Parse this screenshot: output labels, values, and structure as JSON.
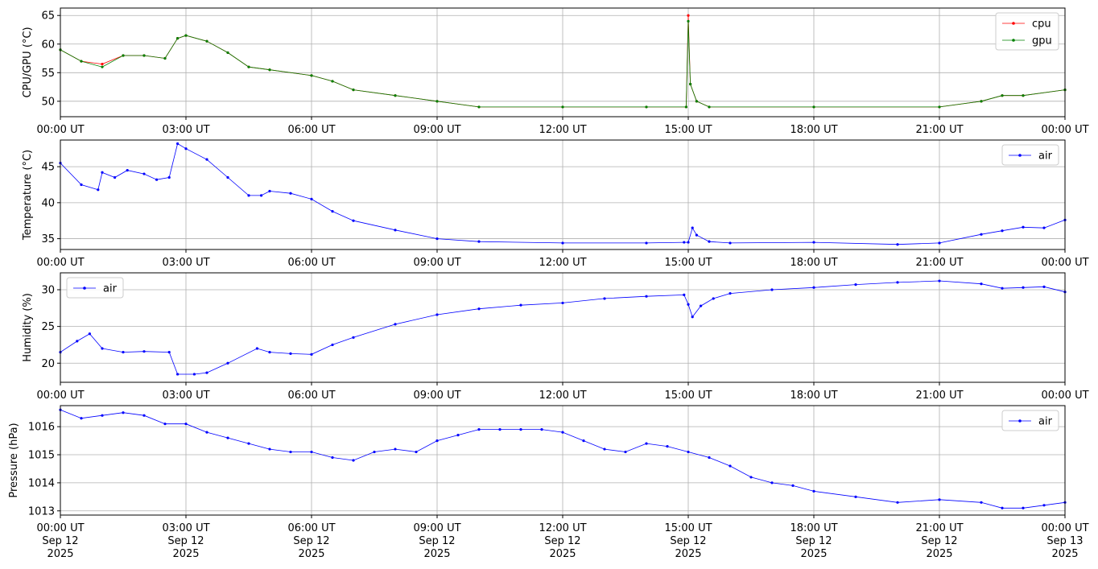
{
  "x_ticks": [
    "00:00 UT",
    "03:00 UT",
    "06:00 UT",
    "09:00 UT",
    "12:00 UT",
    "15:00 UT",
    "18:00 UT",
    "21:00 UT",
    "00:00 UT"
  ],
  "x_date_ticks": [
    [
      "Sep 12",
      "2025"
    ],
    [
      "Sep 12",
      "2025"
    ],
    [
      "Sep 12",
      "2025"
    ],
    [
      "Sep 12",
      "2025"
    ],
    [
      "Sep 12",
      "2025"
    ],
    [
      "Sep 12",
      "2025"
    ],
    [
      "Sep 12",
      "2025"
    ],
    [
      "Sep 12",
      "2025"
    ],
    [
      "Sep 13",
      "2025"
    ]
  ],
  "colors": {
    "cpu": "#ff0000",
    "gpu": "#008000",
    "air": "#0000ff",
    "grid": "#b0b0b0"
  },
  "chart_data": [
    {
      "type": "line",
      "ylabel": "CPU/GPU (°C)",
      "xlim": [
        "2025-09-12 00:00 UT",
        "2025-09-13 00:00 UT"
      ],
      "ylim": [
        47.3,
        66.3
      ],
      "yticks": [
        50,
        55,
        60,
        65
      ],
      "grid": true,
      "legend": "top-right",
      "x_hours": [
        0,
        0.5,
        1.0,
        1.5,
        2.0,
        2.5,
        2.8,
        3.0,
        3.5,
        4.0,
        4.5,
        5.0,
        6.0,
        6.5,
        7.0,
        8.0,
        9.0,
        10.0,
        12.0,
        14.0,
        14.95,
        15.0,
        15.05,
        15.2,
        15.5,
        18.0,
        21.0,
        22.0,
        22.5,
        23.0,
        24.0
      ],
      "series": [
        {
          "name": "cpu",
          "values": [
            59,
            57,
            56.5,
            58,
            58,
            57.5,
            61,
            61.5,
            60.5,
            58.5,
            56,
            55.5,
            54.5,
            53.5,
            52,
            51,
            50,
            49,
            49,
            49,
            49,
            65,
            53,
            50,
            49,
            49,
            49,
            50,
            51,
            51,
            52
          ]
        },
        {
          "name": "gpu",
          "values": [
            59,
            57,
            56,
            58,
            58,
            57.5,
            61,
            61.5,
            60.5,
            58.5,
            56,
            55.5,
            54.5,
            53.5,
            52,
            51,
            50,
            49,
            49,
            49,
            49,
            64,
            53,
            50,
            49,
            49,
            49,
            50,
            51,
            51,
            52
          ]
        }
      ]
    },
    {
      "type": "line",
      "ylabel": "Temperature (°C)",
      "xlim": [
        "2025-09-12 00:00 UT",
        "2025-09-13 00:00 UT"
      ],
      "ylim": [
        33.5,
        48.7
      ],
      "yticks": [
        35,
        40,
        45
      ],
      "grid": true,
      "legend": "top-right",
      "x_hours": [
        0,
        0.5,
        0.9,
        1.0,
        1.3,
        1.6,
        2.0,
        2.3,
        2.6,
        2.8,
        3.0,
        3.5,
        4.0,
        4.5,
        4.8,
        5.0,
        5.5,
        6.0,
        6.5,
        7.0,
        8.0,
        9.0,
        10.0,
        12.0,
        14.0,
        14.9,
        15.0,
        15.1,
        15.2,
        15.5,
        16.0,
        18.0,
        20.0,
        21.0,
        22.0,
        22.5,
        23.0,
        23.5,
        24.0
      ],
      "series": [
        {
          "name": "air",
          "values": [
            45.5,
            42.5,
            41.8,
            44.2,
            43.5,
            44.5,
            44.0,
            43.2,
            43.5,
            48.2,
            47.5,
            46.0,
            43.5,
            41.0,
            41.0,
            41.6,
            41.3,
            40.5,
            38.8,
            37.5,
            36.2,
            35.0,
            34.6,
            34.4,
            34.4,
            34.5,
            34.5,
            36.5,
            35.5,
            34.6,
            34.4,
            34.5,
            34.2,
            34.4,
            35.6,
            36.1,
            36.6,
            36.5,
            37.6
          ]
        }
      ]
    },
    {
      "type": "line",
      "ylabel": "Humidity (%)",
      "xlim": [
        "2025-09-12 00:00 UT",
        "2025-09-13 00:00 UT"
      ],
      "ylim": [
        17.4,
        32.3
      ],
      "yticks": [
        20,
        25,
        30
      ],
      "grid": true,
      "legend": "top-left",
      "x_hours": [
        0,
        0.4,
        0.7,
        1.0,
        1.5,
        2.0,
        2.6,
        2.8,
        3.2,
        3.5,
        4.0,
        4.7,
        5.0,
        5.5,
        6.0,
        6.5,
        7.0,
        8.0,
        9.0,
        10.0,
        11.0,
        12.0,
        13.0,
        14.0,
        14.9,
        15.0,
        15.1,
        15.3,
        15.6,
        16.0,
        17.0,
        18.0,
        19.0,
        20.0,
        21.0,
        22.0,
        22.5,
        23.0,
        23.5,
        24.0
      ],
      "series": [
        {
          "name": "air",
          "values": [
            21.5,
            23.0,
            24.0,
            22.0,
            21.5,
            21.6,
            21.5,
            18.5,
            18.5,
            18.7,
            20.0,
            22.0,
            21.5,
            21.3,
            21.2,
            22.5,
            23.5,
            25.3,
            26.6,
            27.4,
            27.9,
            28.2,
            28.8,
            29.1,
            29.3,
            28.0,
            26.3,
            27.8,
            28.8,
            29.5,
            30.0,
            30.3,
            30.7,
            31.0,
            31.2,
            30.8,
            30.2,
            30.3,
            30.4,
            29.7
          ]
        }
      ]
    },
    {
      "type": "line",
      "ylabel": "Pressure (hPa)",
      "xlim": [
        "2025-09-12 00:00 UT",
        "2025-09-13 00:00 UT"
      ],
      "ylim": [
        1012.85,
        1016.75
      ],
      "yticks": [
        1013,
        1014,
        1015,
        1016
      ],
      "grid": true,
      "legend": "top-right",
      "x_hours": [
        0,
        0.5,
        1.0,
        1.5,
        2.0,
        2.5,
        3.0,
        3.5,
        4.0,
        4.5,
        5.0,
        5.5,
        6.0,
        6.5,
        7.0,
        7.5,
        8.0,
        8.5,
        9.0,
        9.5,
        10.0,
        10.5,
        11.0,
        11.5,
        12.0,
        12.5,
        13.0,
        13.5,
        14.0,
        14.5,
        15.0,
        15.5,
        16.0,
        16.5,
        17.0,
        17.5,
        18.0,
        19.0,
        20.0,
        21.0,
        22.0,
        22.5,
        23.0,
        23.5,
        24.0
      ],
      "series": [
        {
          "name": "air",
          "values": [
            1016.6,
            1016.3,
            1016.4,
            1016.5,
            1016.4,
            1016.1,
            1016.1,
            1015.8,
            1015.6,
            1015.4,
            1015.2,
            1015.1,
            1015.1,
            1014.9,
            1014.8,
            1015.1,
            1015.2,
            1015.1,
            1015.5,
            1015.7,
            1015.9,
            1015.9,
            1015.9,
            1015.9,
            1015.8,
            1015.5,
            1015.2,
            1015.1,
            1015.4,
            1015.3,
            1015.1,
            1014.9,
            1014.6,
            1014.2,
            1014.0,
            1013.9,
            1013.7,
            1013.5,
            1013.3,
            1013.4,
            1013.3,
            1013.1,
            1013.1,
            1013.2,
            1013.3
          ]
        }
      ]
    }
  ]
}
